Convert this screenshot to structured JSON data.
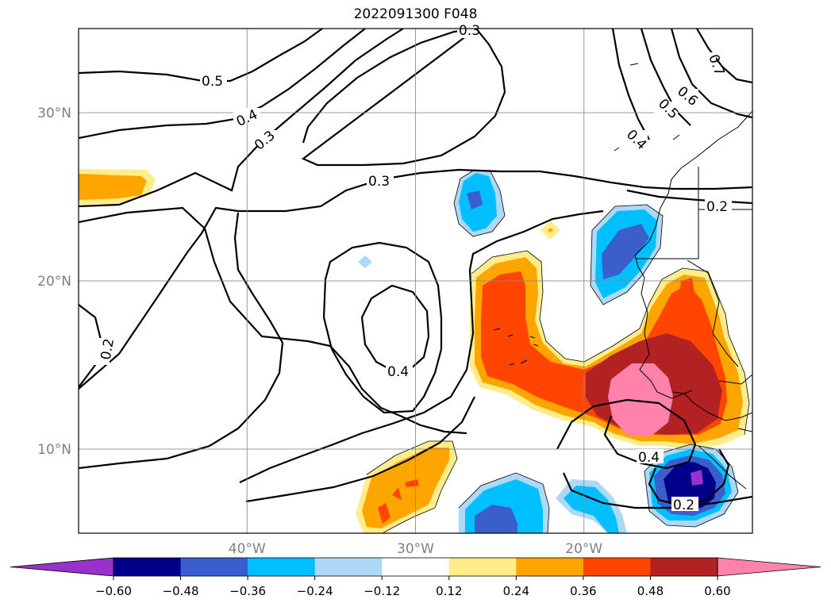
{
  "title": "2022091300 F048",
  "map": {
    "lat_range": [
      5,
      35
    ],
    "lon_range": [
      -50,
      -10
    ],
    "lat_ticks": [
      {
        "value": 30,
        "label": "30°N"
      },
      {
        "value": 20,
        "label": "20°N"
      },
      {
        "value": 10,
        "label": "10°N"
      }
    ],
    "lon_ticks": [
      {
        "value": -40,
        "label": "40°W"
      },
      {
        "value": -30,
        "label": "30°W"
      },
      {
        "value": -20,
        "label": "20°W"
      }
    ],
    "grid": true,
    "contour_labels": [
      "0.5",
      "0.4",
      "0.3",
      "0.3",
      "0.2",
      "0.4",
      "0.4",
      "0.2",
      "0.2",
      "0.7",
      "0.6",
      "0.5",
      "0.4",
      "0.3"
    ]
  },
  "colorbar": {
    "levels": [
      "−0.60",
      "−0.48",
      "−0.36",
      "−0.24",
      "−0.12",
      "0.12",
      "0.24",
      "0.36",
      "0.48",
      "0.60"
    ],
    "colors": [
      "#9932CC",
      "#00008B",
      "#3A5FCD",
      "#00BFFF",
      "#ADD8F6",
      "#FFFFFF",
      "#FFEC8B",
      "#FFA500",
      "#FF4500",
      "#B22222",
      "#FF82AB"
    ],
    "extend": "both"
  }
}
